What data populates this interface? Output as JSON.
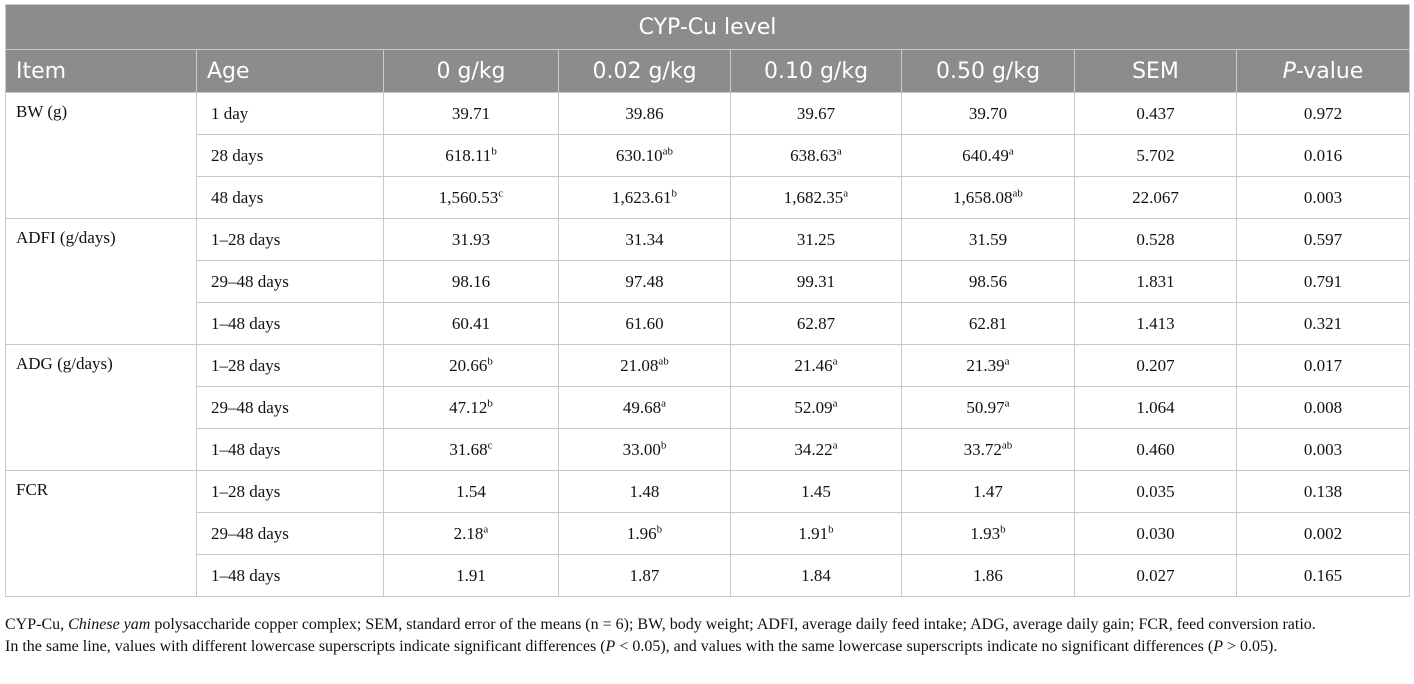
{
  "table": {
    "group_header": "CYP-Cu level",
    "columns": [
      "Item",
      "Age",
      "0 g/kg",
      "0.02 g/kg",
      "0.10 g/kg",
      "0.50 g/kg",
      "SEM",
      "P-value"
    ],
    "pvalue_prefix": "P",
    "pvalue_suffix": "-value",
    "groups": [
      {
        "item": "BW (g)",
        "rows": [
          {
            "age": "1 day",
            "v0": "39.71",
            "s0": "",
            "v1": "39.86",
            "s1": "",
            "v2": "39.67",
            "s2": "",
            "v3": "39.70",
            "s3": "",
            "sem": "0.437",
            "p": "0.972"
          },
          {
            "age": "28 days",
            "v0": "618.11",
            "s0": "b",
            "v1": "630.10",
            "s1": "ab",
            "v2": "638.63",
            "s2": "a",
            "v3": "640.49",
            "s3": "a",
            "sem": "5.702",
            "p": "0.016"
          },
          {
            "age": "48 days",
            "v0": "1,560.53",
            "s0": "c",
            "v1": "1,623.61",
            "s1": "b",
            "v2": "1,682.35",
            "s2": "a",
            "v3": "1,658.08",
            "s3": "ab",
            "sem": "22.067",
            "p": "0.003"
          }
        ]
      },
      {
        "item": "ADFI (g/days)",
        "rows": [
          {
            "age": "1–28 days",
            "v0": "31.93",
            "s0": "",
            "v1": "31.34",
            "s1": "",
            "v2": "31.25",
            "s2": "",
            "v3": "31.59",
            "s3": "",
            "sem": "0.528",
            "p": "0.597"
          },
          {
            "age": "29–48 days",
            "v0": "98.16",
            "s0": "",
            "v1": "97.48",
            "s1": "",
            "v2": "99.31",
            "s2": "",
            "v3": "98.56",
            "s3": "",
            "sem": "1.831",
            "p": "0.791"
          },
          {
            "age": "1–48 days",
            "v0": "60.41",
            "s0": "",
            "v1": "61.60",
            "s1": "",
            "v2": "62.87",
            "s2": "",
            "v3": "62.81",
            "s3": "",
            "sem": "1.413",
            "p": "0.321"
          }
        ]
      },
      {
        "item": "ADG (g/days)",
        "rows": [
          {
            "age": "1–28 days",
            "v0": "20.66",
            "s0": "b",
            "v1": "21.08",
            "s1": "ab",
            "v2": "21.46",
            "s2": "a",
            "v3": "21.39",
            "s3": "a",
            "sem": "0.207",
            "p": "0.017"
          },
          {
            "age": "29–48 days",
            "v0": "47.12",
            "s0": "b",
            "v1": "49.68",
            "s1": "a",
            "v2": "52.09",
            "s2": "a",
            "v3": "50.97",
            "s3": "a",
            "sem": "1.064",
            "p": "0.008"
          },
          {
            "age": "1–48 days",
            "v0": "31.68",
            "s0": "c",
            "v1": "33.00",
            "s1": "b",
            "v2": "34.22",
            "s2": "a",
            "v3": "33.72",
            "s3": "ab",
            "sem": "0.460",
            "p": "0.003"
          }
        ]
      },
      {
        "item": "FCR",
        "rows": [
          {
            "age": "1–28 days",
            "v0": "1.54",
            "s0": "",
            "v1": "1.48",
            "s1": "",
            "v2": "1.45",
            "s2": "",
            "v3": "1.47",
            "s3": "",
            "sem": "0.035",
            "p": "0.138"
          },
          {
            "age": "29–48 days",
            "v0": "2.18",
            "s0": "a",
            "v1": "1.96",
            "s1": "b",
            "v2": "1.91",
            "s2": "b",
            "v3": "1.93",
            "s3": "b",
            "sem": "0.030",
            "p": "0.002"
          },
          {
            "age": "1–48 days",
            "v0": "1.91",
            "s0": "",
            "v1": "1.87",
            "s1": "",
            "v2": "1.84",
            "s2": "",
            "v3": "1.86",
            "s3": "",
            "sem": "0.027",
            "p": "0.165"
          }
        ]
      }
    ]
  },
  "notes": {
    "line1_a": "CYP-Cu, ",
    "line1_italic": "Chinese yam",
    "line1_b": " polysaccharide copper complex; SEM, standard error of the means (n = 6); BW, body weight; ADFI, average daily feed intake; ADG, average daily gain; FCR, feed conversion ratio.",
    "line2_a": "In the same line, values with different lowercase superscripts indicate significant differences (",
    "line2_p1": "P",
    "line2_b": " < 0.05), and values with the same lowercase superscripts indicate no significant differences (",
    "line2_p2": "P",
    "line2_c": " > 0.05)."
  },
  "colors": {
    "header_bg": "#8c8c8c",
    "header_text": "#ffffff",
    "border": "#c9c9c9"
  }
}
